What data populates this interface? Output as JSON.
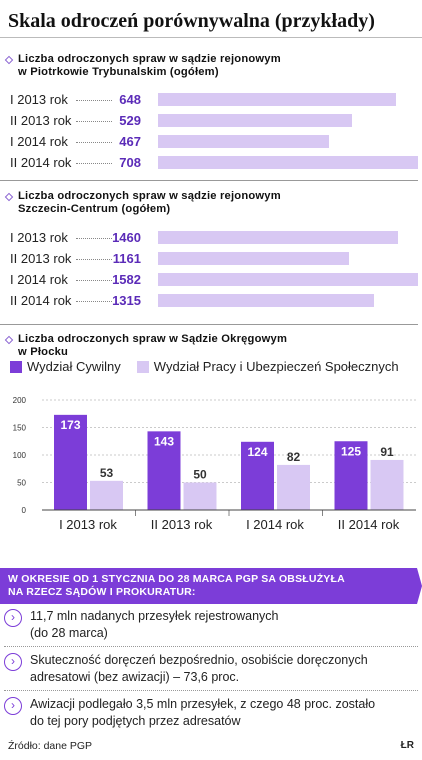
{
  "title": "Skala odroczeń porównywalna (przykłady)",
  "colors": {
    "accent": "#5b2bb8",
    "bar_dark": "#7c3dd8",
    "bar_light": "#d8c8f3",
    "banner": "#7c3dd8"
  },
  "chart_data": [
    {
      "type": "bar",
      "orientation": "horizontal",
      "title_lines": [
        "Liczba odroczonych spraw w sądzie rejonowym",
        "w Piotrkowie Trybunalskim (ogółem)"
      ],
      "categories": [
        "I 2013 rok",
        "II 2013 rok",
        "I 2014 rok",
        "II 2014 rok"
      ],
      "values": [
        648,
        529,
        467,
        708
      ],
      "value_labels": [
        "648",
        "529",
        "467",
        "708"
      ]
    },
    {
      "type": "bar",
      "orientation": "horizontal",
      "title_lines": [
        "Liczba odroczonych spraw w sądzie rejonowym",
        "Szczecin-Centrum (ogółem)"
      ],
      "categories": [
        "I 2013 rok",
        "II 2013 rok",
        "I 2014 rok",
        "II 2014 rok"
      ],
      "values": [
        1460,
        1161,
        1582,
        1315
      ],
      "value_labels": [
        "1460",
        "1161",
        "1582",
        "1315"
      ]
    },
    {
      "type": "bar",
      "orientation": "vertical",
      "title_lines": [
        "Liczba odroczonych spraw w Sądzie Okręgowym",
        "w Płocku"
      ],
      "categories": [
        "I 2013 rok",
        "II 2013 rok",
        "I 2014 rok",
        "II 2014 rok"
      ],
      "series": [
        {
          "name": "Wydział Cywilny",
          "values": [
            173,
            143,
            124,
            125
          ],
          "value_labels": [
            "173",
            "143",
            "124",
            "125"
          ]
        },
        {
          "name": "Wydział Pracy i Ubezpieczeń Społecznych",
          "values": [
            53,
            50,
            82,
            91
          ],
          "value_labels": [
            "53",
            "50",
            "82",
            "91"
          ]
        }
      ],
      "ylim": [
        0,
        200
      ],
      "yticks": [
        "0",
        "50",
        "100",
        "150",
        "200"
      ],
      "grid": true
    }
  ],
  "legend": {
    "dark_label": "Wydział Cywilny",
    "light_label": "Wydział Pracy i Ubezpieczeń Społecznych"
  },
  "banner": {
    "line1": "W okresie od 1 stycznia do 28 marca PGP sa obsłużyła",
    "line2": "na rzecz sądów i prokuratur:"
  },
  "facts": [
    {
      "icon": "chevron-right-icon",
      "lines": [
        "11,7 mln nadanych przesyłek rejestrowanych",
        "(do 28 marca)"
      ]
    },
    {
      "icon": "chevron-right-icon",
      "lines": [
        "Skuteczność doręczeń bezpośrednio, osobiście doręczonych",
        "adresatowi (bez awizacji) – 73,6 proc."
      ]
    },
    {
      "icon": "chevron-right-icon",
      "lines": [
        "Awizacji podlegało 3,5 mln przesyłek, z czego 48 proc. zostało",
        "do tej pory podjętych przez adresatów"
      ]
    }
  ],
  "footer": {
    "source": "Źródło: dane PGP",
    "credit": "ŁR"
  }
}
